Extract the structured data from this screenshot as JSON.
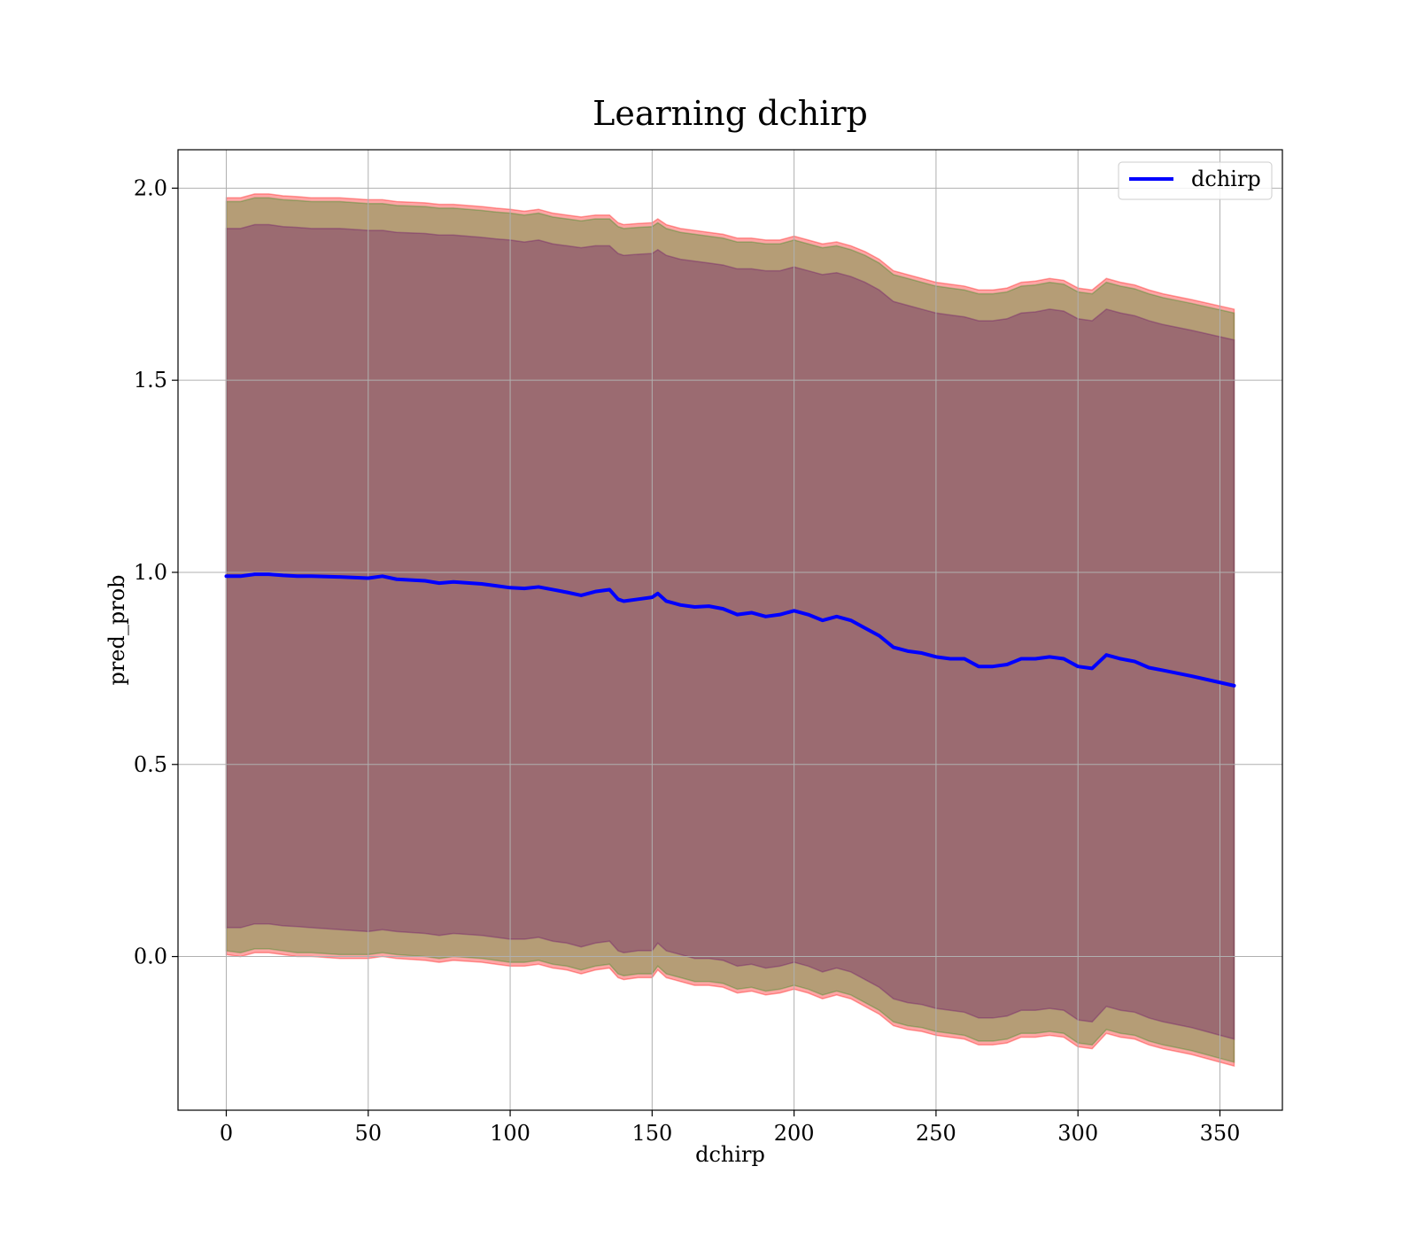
{
  "chart_data": {
    "type": "line",
    "title": "Learning dchirp",
    "xlabel": "dchirp",
    "ylabel": "pred_prob",
    "xlim": [
      -17,
      372
    ],
    "ylim": [
      -0.4,
      2.1
    ],
    "grid": true,
    "legend_position": "top-right",
    "xticks": [
      0,
      50,
      100,
      150,
      200,
      250,
      300,
      350
    ],
    "xtick_labels": [
      "0",
      "50",
      "100",
      "150",
      "200",
      "250",
      "300",
      "350"
    ],
    "yticks": [
      0.0,
      0.5,
      1.0,
      1.5,
      2.0
    ],
    "ytick_labels": [
      "0.0",
      "0.5",
      "1.0",
      "1.5",
      "2.0"
    ],
    "series": [
      {
        "name": "dchirp",
        "color": "#0000ff",
        "x": [
          0,
          5,
          10,
          15,
          20,
          25,
          30,
          40,
          50,
          55,
          60,
          70,
          75,
          80,
          90,
          95,
          100,
          105,
          110,
          115,
          120,
          125,
          130,
          135,
          138,
          140,
          145,
          150,
          152,
          155,
          160,
          165,
          170,
          175,
          180,
          185,
          190,
          195,
          200,
          205,
          210,
          215,
          220,
          225,
          230,
          235,
          240,
          245,
          250,
          255,
          260,
          265,
          270,
          275,
          280,
          285,
          290,
          295,
          300,
          305,
          310,
          315,
          320,
          325,
          330,
          340,
          355
        ],
        "y": [
          0.99,
          0.99,
          0.995,
          0.995,
          0.992,
          0.99,
          0.99,
          0.988,
          0.985,
          0.99,
          0.982,
          0.978,
          0.972,
          0.975,
          0.97,
          0.965,
          0.96,
          0.958,
          0.962,
          0.955,
          0.948,
          0.94,
          0.95,
          0.955,
          0.93,
          0.925,
          0.93,
          0.935,
          0.945,
          0.925,
          0.915,
          0.91,
          0.912,
          0.905,
          0.89,
          0.895,
          0.885,
          0.89,
          0.9,
          0.89,
          0.875,
          0.885,
          0.875,
          0.855,
          0.835,
          0.805,
          0.795,
          0.79,
          0.78,
          0.775,
          0.775,
          0.755,
          0.755,
          0.76,
          0.775,
          0.775,
          0.78,
          0.775,
          0.755,
          0.75,
          0.785,
          0.775,
          0.768,
          0.752,
          0.745,
          0.73,
          0.705
        ]
      }
    ],
    "bands": [
      {
        "color": "#ff0000",
        "alpha": 0.35,
        "upper": [
          1.975,
          1.975,
          1.985,
          1.985,
          1.98,
          1.978,
          1.975,
          1.975,
          1.97,
          1.97,
          1.965,
          1.962,
          1.958,
          1.958,
          1.952,
          1.948,
          1.945,
          1.94,
          1.945,
          1.935,
          1.93,
          1.925,
          1.93,
          1.93,
          1.91,
          1.905,
          1.908,
          1.91,
          1.92,
          1.905,
          1.895,
          1.89,
          1.885,
          1.88,
          1.87,
          1.87,
          1.865,
          1.865,
          1.875,
          1.865,
          1.855,
          1.86,
          1.85,
          1.835,
          1.815,
          1.785,
          1.775,
          1.765,
          1.755,
          1.75,
          1.745,
          1.735,
          1.735,
          1.74,
          1.755,
          1.758,
          1.765,
          1.76,
          1.74,
          1.735,
          1.765,
          1.755,
          1.748,
          1.735,
          1.725,
          1.71,
          1.685
        ],
        "lower": [
          0.005,
          0.0,
          0.01,
          0.01,
          0.005,
          0.0,
          0.0,
          -0.005,
          -0.005,
          0.0,
          -0.005,
          -0.01,
          -0.015,
          -0.01,
          -0.015,
          -0.02,
          -0.025,
          -0.025,
          -0.02,
          -0.03,
          -0.035,
          -0.045,
          -0.035,
          -0.03,
          -0.055,
          -0.06,
          -0.055,
          -0.055,
          -0.035,
          -0.055,
          -0.065,
          -0.075,
          -0.075,
          -0.08,
          -0.095,
          -0.09,
          -0.1,
          -0.095,
          -0.085,
          -0.095,
          -0.11,
          -0.1,
          -0.11,
          -0.13,
          -0.15,
          -0.18,
          -0.19,
          -0.195,
          -0.205,
          -0.21,
          -0.215,
          -0.23,
          -0.23,
          -0.225,
          -0.21,
          -0.21,
          -0.205,
          -0.21,
          -0.235,
          -0.24,
          -0.2,
          -0.21,
          -0.215,
          -0.23,
          -0.24,
          -0.255,
          -0.285
        ]
      },
      {
        "color": "#2a8c1e",
        "alpha": 0.35,
        "upper": [
          1.965,
          1.965,
          1.975,
          1.975,
          1.97,
          1.968,
          1.965,
          1.965,
          1.96,
          1.96,
          1.955,
          1.952,
          1.948,
          1.948,
          1.942,
          1.938,
          1.935,
          1.93,
          1.935,
          1.925,
          1.92,
          1.915,
          1.92,
          1.92,
          1.9,
          1.895,
          1.898,
          1.9,
          1.91,
          1.895,
          1.885,
          1.88,
          1.875,
          1.87,
          1.86,
          1.86,
          1.855,
          1.855,
          1.865,
          1.855,
          1.845,
          1.85,
          1.84,
          1.825,
          1.805,
          1.775,
          1.765,
          1.755,
          1.745,
          1.74,
          1.735,
          1.725,
          1.725,
          1.73,
          1.745,
          1.748,
          1.755,
          1.75,
          1.73,
          1.725,
          1.755,
          1.745,
          1.738,
          1.725,
          1.715,
          1.7,
          1.675
        ],
        "lower": [
          0.015,
          0.01,
          0.02,
          0.02,
          0.015,
          0.01,
          0.01,
          0.005,
          0.005,
          0.01,
          0.005,
          0.0,
          -0.005,
          0.0,
          -0.005,
          -0.01,
          -0.015,
          -0.015,
          -0.01,
          -0.02,
          -0.025,
          -0.035,
          -0.025,
          -0.02,
          -0.045,
          -0.05,
          -0.045,
          -0.045,
          -0.025,
          -0.045,
          -0.055,
          -0.065,
          -0.065,
          -0.07,
          -0.085,
          -0.08,
          -0.09,
          -0.085,
          -0.075,
          -0.085,
          -0.1,
          -0.09,
          -0.1,
          -0.12,
          -0.14,
          -0.17,
          -0.18,
          -0.185,
          -0.195,
          -0.2,
          -0.205,
          -0.22,
          -0.22,
          -0.215,
          -0.2,
          -0.2,
          -0.195,
          -0.2,
          -0.225,
          -0.23,
          -0.19,
          -0.2,
          -0.205,
          -0.22,
          -0.23,
          -0.245,
          -0.275
        ]
      },
      {
        "color": "#6a0d6a",
        "alpha": 0.35,
        "upper": [
          1.895,
          1.895,
          1.905,
          1.905,
          1.9,
          1.898,
          1.895,
          1.895,
          1.89,
          1.89,
          1.885,
          1.882,
          1.878,
          1.878,
          1.872,
          1.868,
          1.865,
          1.86,
          1.865,
          1.855,
          1.85,
          1.845,
          1.85,
          1.85,
          1.83,
          1.825,
          1.828,
          1.83,
          1.84,
          1.825,
          1.815,
          1.81,
          1.805,
          1.8,
          1.79,
          1.79,
          1.785,
          1.785,
          1.795,
          1.785,
          1.775,
          1.78,
          1.77,
          1.755,
          1.735,
          1.705,
          1.695,
          1.685,
          1.675,
          1.67,
          1.665,
          1.655,
          1.655,
          1.66,
          1.675,
          1.678,
          1.685,
          1.68,
          1.66,
          1.655,
          1.685,
          1.675,
          1.668,
          1.655,
          1.645,
          1.63,
          1.605
        ],
        "lower": [
          0.075,
          0.075,
          0.085,
          0.085,
          0.08,
          0.078,
          0.075,
          0.07,
          0.065,
          0.07,
          0.065,
          0.06,
          0.055,
          0.06,
          0.055,
          0.05,
          0.045,
          0.045,
          0.05,
          0.04,
          0.035,
          0.025,
          0.035,
          0.04,
          0.015,
          0.01,
          0.015,
          0.015,
          0.035,
          0.015,
          0.005,
          -0.005,
          -0.005,
          -0.01,
          -0.025,
          -0.02,
          -0.03,
          -0.025,
          -0.015,
          -0.025,
          -0.04,
          -0.03,
          -0.04,
          -0.06,
          -0.08,
          -0.11,
          -0.12,
          -0.125,
          -0.135,
          -0.14,
          -0.145,
          -0.16,
          -0.16,
          -0.155,
          -0.14,
          -0.14,
          -0.135,
          -0.14,
          -0.165,
          -0.17,
          -0.13,
          -0.14,
          -0.145,
          -0.16,
          -0.17,
          -0.185,
          -0.215
        ]
      }
    ]
  }
}
